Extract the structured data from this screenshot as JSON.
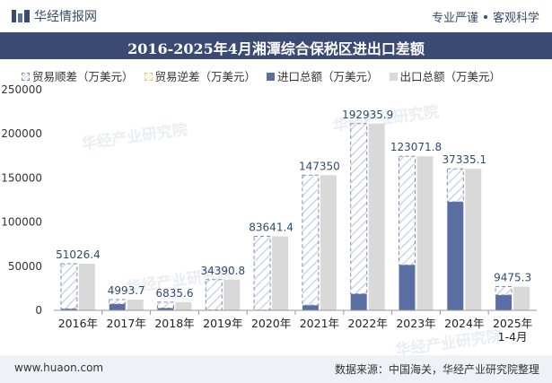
{
  "header": {
    "logo_text": "华经情报网",
    "slogan_left": "专业严谨",
    "slogan_right": "客观科学"
  },
  "watermark_text": "华经产业研究院",
  "footer": {
    "website": "www.huaon.com",
    "source": "数据来源：中国海关，华经产业研究院整理"
  },
  "colors": {
    "title_bg": "#3b4a73",
    "import": "#5b6ea4",
    "export": "#d9d9d9",
    "surplus_line": "#7a8fb0",
    "label": "#2f4a70"
  },
  "chart_data": {
    "type": "bar",
    "title": "2016-2025年4月湘潭综合保税区进出口差额",
    "categories": [
      "2016年",
      "2017年",
      "2018年",
      "2019年",
      "2020年",
      "2021年",
      "2022年",
      "2023年",
      "2024年",
      "2025年\n1-4月"
    ],
    "series": [
      {
        "name": "贸易顺差（万美元）",
        "values": [
          51026.4,
          4993.7,
          6835.6,
          34390.8,
          83641.4,
          147350,
          192935.9,
          123071.8,
          37335.1,
          9475.3
        ]
      },
      {
        "name": "贸易逆差（万美元）",
        "values": [
          0,
          0,
          0,
          0,
          0,
          0,
          0,
          0,
          0,
          0
        ]
      },
      {
        "name": "进口总额（万美元）",
        "values": [
          1800,
          7200,
          2500,
          400,
          200,
          5800,
          18700,
          51500,
          123000,
          17400
        ]
      },
      {
        "name": "出口总额（万美元）",
        "values": [
          52826.4,
          12193.7,
          9335.6,
          34790.8,
          83841.4,
          153150,
          211635.9,
          174571.8,
          160335.1,
          26875.3
        ]
      }
    ],
    "data_labels": [
      "51026.4",
      "4993.7",
      "6835.6",
      "34390.8",
      "83641.4",
      "147350",
      "192935.9",
      "123071.8",
      "37335.1",
      "9475.3"
    ],
    "yticks": [
      "0",
      "50000",
      "100000",
      "150000",
      "200000",
      "250000"
    ],
    "ylim": [
      0,
      250000
    ],
    "legend_position": "top-left",
    "grid": false
  }
}
